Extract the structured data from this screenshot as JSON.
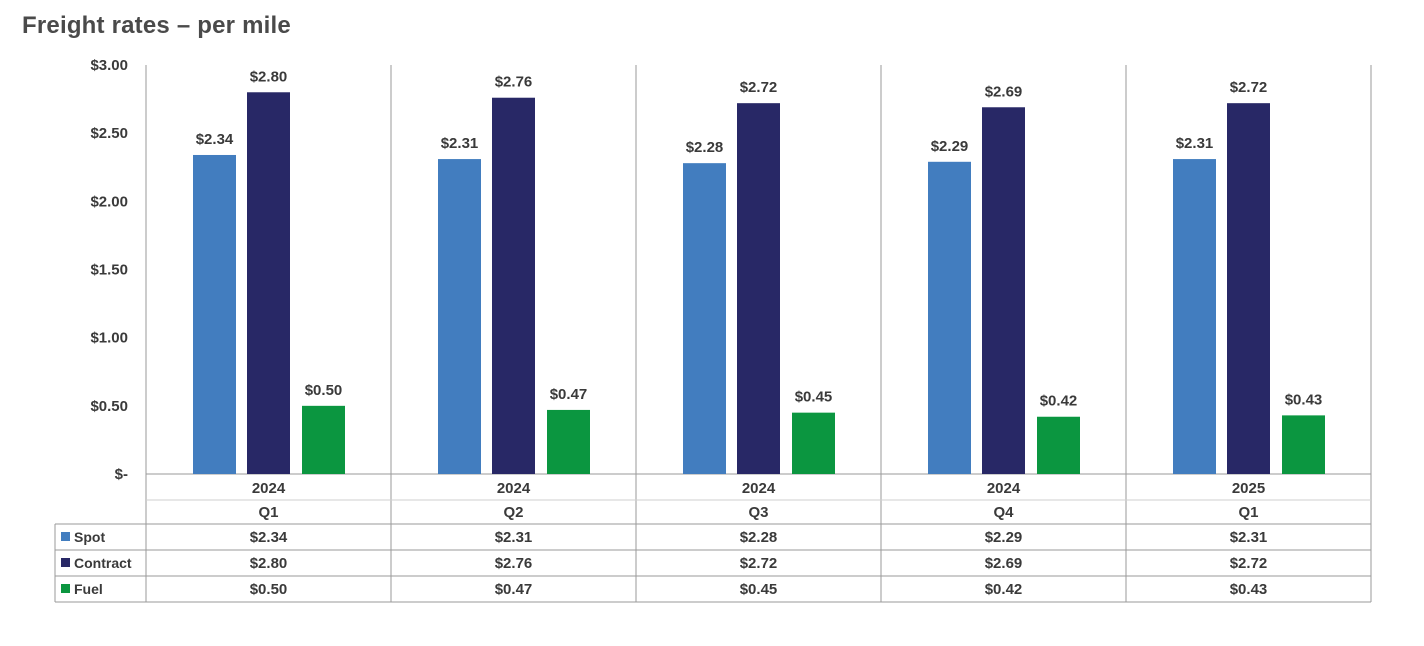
{
  "title": "Freight rates – per mile",
  "chart_data": {
    "type": "bar",
    "title": "Freight rates – per mile",
    "xlabel": "",
    "ylabel": "",
    "ylim": [
      0,
      3.0
    ],
    "y_ticks": [
      0,
      0.5,
      1.0,
      1.5,
      2.0,
      2.5,
      3.0
    ],
    "y_tick_labels": [
      "$-",
      "$0.50",
      "$1.00",
      "$1.50",
      "$2.00",
      "$2.50",
      "$3.00"
    ],
    "categories": [
      {
        "year": "2024",
        "quarter": "Q1"
      },
      {
        "year": "2024",
        "quarter": "Q2"
      },
      {
        "year": "2024",
        "quarter": "Q3"
      },
      {
        "year": "2024",
        "quarter": "Q4"
      },
      {
        "year": "2025",
        "quarter": "Q1"
      }
    ],
    "series": [
      {
        "name": "Spot",
        "color": "#427DBF",
        "values": [
          2.34,
          2.31,
          2.28,
          2.29,
          2.31
        ],
        "labels": [
          "$2.34",
          "$2.31",
          "$2.28",
          "$2.29",
          "$2.31"
        ]
      },
      {
        "name": "Contract",
        "color": "#282866",
        "values": [
          2.8,
          2.76,
          2.72,
          2.69,
          2.72
        ],
        "labels": [
          "$2.80",
          "$2.76",
          "$2.72",
          "$2.69",
          "$2.72"
        ]
      },
      {
        "name": "Fuel",
        "color": "#0B9640",
        "values": [
          0.5,
          0.47,
          0.45,
          0.42,
          0.43
        ],
        "labels": [
          "$0.50",
          "$0.47",
          "$0.45",
          "$0.42",
          "$0.43"
        ]
      }
    ],
    "grid": false,
    "legend": "data-table"
  }
}
